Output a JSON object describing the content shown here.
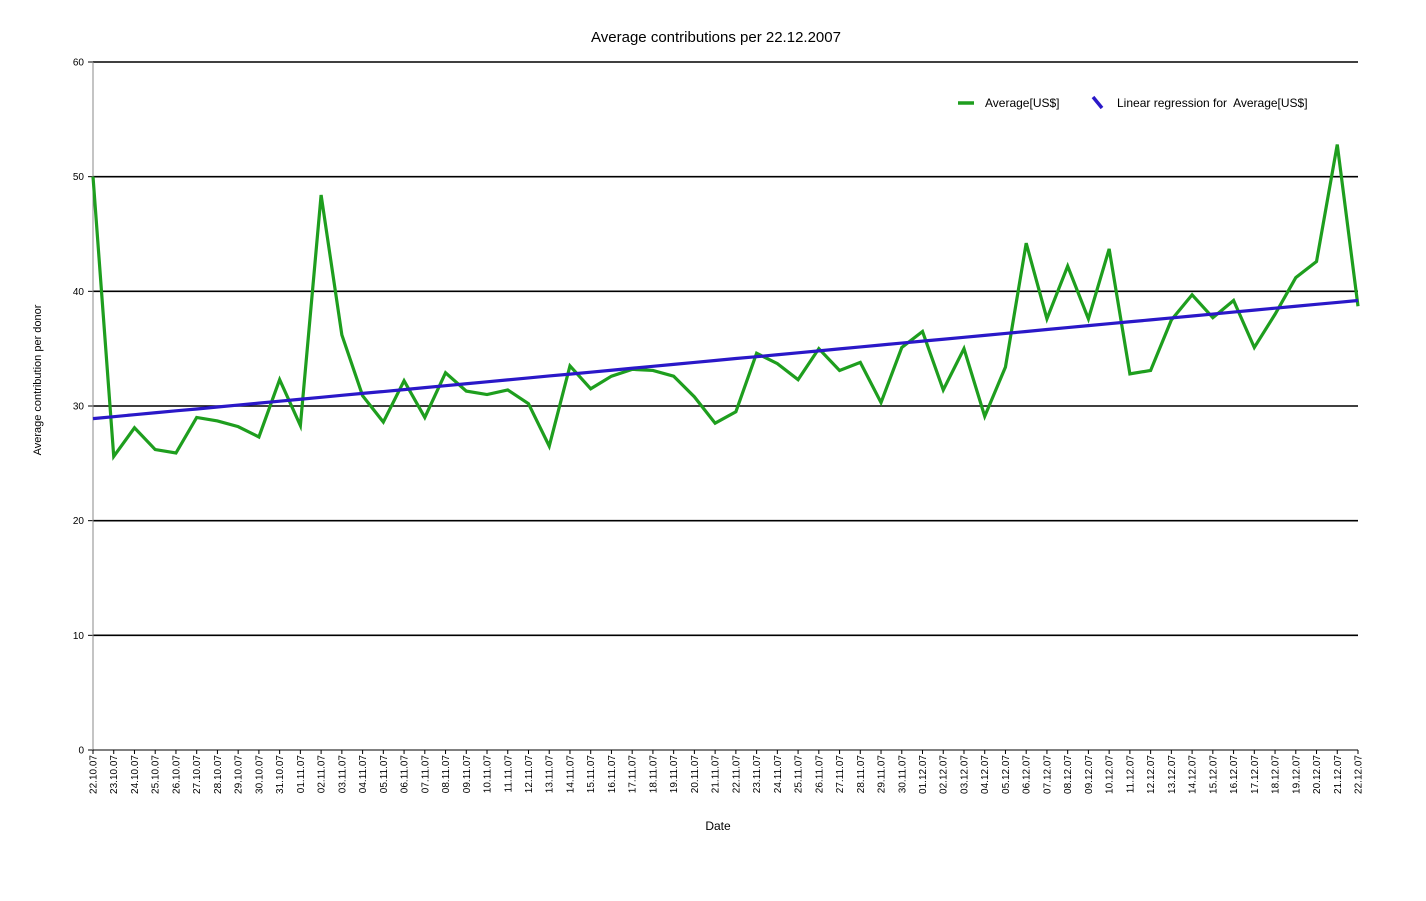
{
  "chart_data": {
    "type": "line",
    "title": "Average contributions per 22.12.2007",
    "x_label": "Date",
    "y_label": "Average contribution per donor",
    "categories": [
      "22.10.07",
      "23.10.07",
      "24.10.07",
      "25.10.07",
      "26.10.07",
      "27.10.07",
      "28.10.07",
      "29.10.07",
      "30.10.07",
      "31.10.07",
      "01.11.07",
      "02.11.07",
      "03.11.07",
      "04.11.07",
      "05.11.07",
      "06.11.07",
      "07.11.07",
      "08.11.07",
      "09.11.07",
      "10.11.07",
      "11.11.07",
      "12.11.07",
      "13.11.07",
      "14.11.07",
      "15.11.07",
      "16.11.07",
      "17.11.07",
      "18.11.07",
      "19.11.07",
      "20.11.07",
      "21.11.07",
      "22.11.07",
      "23.11.07",
      "24.11.07",
      "25.11.07",
      "26.11.07",
      "27.11.07",
      "28.11.07",
      "29.11.07",
      "30.11.07",
      "01.12.07",
      "02.12.07",
      "03.12.07",
      "04.12.07",
      "05.12.07",
      "06.12.07",
      "07.12.07",
      "08.12.07",
      "09.12.07",
      "10.12.07",
      "11.12.07",
      "12.12.07",
      "13.12.07",
      "14.12.07",
      "15.12.07",
      "16.12.07",
      "17.12.07",
      "18.12.07",
      "19.12.07",
      "20.12.07",
      "21.12.07",
      "22.12.07"
    ],
    "series": [
      {
        "name": "Average[US$]",
        "color": "#1e9e1e",
        "values": [
          50,
          25.6,
          28.1,
          26.2,
          25.9,
          29.0,
          28.7,
          28.2,
          27.3,
          32.3,
          28.3,
          48.4,
          36.2,
          30.9,
          28.6,
          32.2,
          29.0,
          32.9,
          31.3,
          31.0,
          31.4,
          30.2,
          26.5,
          33.5,
          31.5,
          32.6,
          33.2,
          33.1,
          32.6,
          30.8,
          28.5,
          29.5,
          34.6,
          33.7,
          32.3,
          35.0,
          33.1,
          33.8,
          30.3,
          35.1,
          36.5,
          31.4,
          35.0,
          29.1,
          33.4,
          44.2,
          37.6,
          42.2,
          37.6,
          43.7,
          32.8,
          33.1,
          37.5,
          39.7,
          37.7,
          39.2,
          35.1,
          38.0,
          41.2,
          42.6,
          52.8,
          38.7
        ]
      },
      {
        "name": "Linear regression for  Average[US$]",
        "color": "#2a18c8",
        "values": [
          28.9,
          29.07,
          29.24,
          29.41,
          29.58,
          29.74,
          29.91,
          30.08,
          30.25,
          30.42,
          30.59,
          30.76,
          30.93,
          31.1,
          31.26,
          31.43,
          31.6,
          31.77,
          31.94,
          32.11,
          32.28,
          32.45,
          32.62,
          32.78,
          32.95,
          33.12,
          33.29,
          33.46,
          33.63,
          33.8,
          33.97,
          34.14,
          34.3,
          34.47,
          34.64,
          34.81,
          34.98,
          35.15,
          35.32,
          35.49,
          35.66,
          35.82,
          35.99,
          36.16,
          36.33,
          36.5,
          36.67,
          36.84,
          37.01,
          37.18,
          37.35,
          37.51,
          37.68,
          37.85,
          38.02,
          38.19,
          38.36,
          38.53,
          38.7,
          38.87,
          39.03,
          39.2
        ]
      }
    ],
    "ylim": [
      0,
      60
    ],
    "yticks": [
      0,
      10,
      20,
      30,
      40,
      50,
      60
    ],
    "grid": true,
    "legend": "top-right"
  }
}
